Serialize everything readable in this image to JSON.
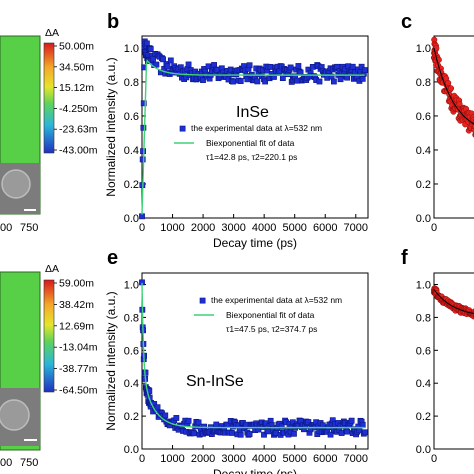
{
  "panel_labels": {
    "b": "b",
    "c": "c",
    "e": "e",
    "f": "f"
  },
  "left_panels": {
    "top": {
      "colorbar_title": "ΔA",
      "colorbar_ticks": [
        "50.00m",
        "34.50m",
        "15.12m",
        "-4.250m",
        "-23.63m",
        "-43.00m"
      ],
      "x_ticks": [
        "00",
        "750"
      ]
    },
    "bottom": {
      "colorbar_title": "ΔA",
      "colorbar_ticks": [
        "59.00m",
        "38.42m",
        "12.69m",
        "-13.04m",
        "-38.77m",
        "-64.50m"
      ],
      "x_ticks": [
        "00",
        "750"
      ]
    }
  },
  "chart_data": [
    {
      "id": "b",
      "type": "scatter",
      "title": "InSe",
      "xlabel": "Decay time (ps)",
      "ylabel": "Normalized intensity (a.u.)",
      "xlim": [
        0,
        7400
      ],
      "ylim": [
        0,
        1.07
      ],
      "x_ticks": [
        "0",
        "1000",
        "2000",
        "3000",
        "4000",
        "5000",
        "6000",
        "7000"
      ],
      "y_ticks": [
        "0.0",
        "0.2",
        "0.4",
        "0.6",
        "0.8",
        "1.0"
      ],
      "series": [
        {
          "name": "the experimental data at λ=532 nm",
          "color": "#1f2fd6",
          "marker": "square",
          "model": {
            "type": "rise_then_plateau",
            "start": 0.02,
            "peak": 1.0,
            "peak_time": 80,
            "plateau": 0.85,
            "noise": 0.05
          },
          "points": 220
        },
        {
          "name": "Biexponential fit of data",
          "color": "#3fd27a",
          "fit": {
            "start": 0.02,
            "peak": 0.93,
            "peak_time": 150,
            "plateau": 0.84
          }
        }
      ],
      "legend_params": "τ1=42.8 ps,  τ2=220.1 ps",
      "legend_position": "middle-center"
    },
    {
      "id": "e",
      "type": "scatter",
      "title": "Sn-InSe",
      "xlabel": "Decay time (ps)",
      "ylabel": "Normalized intensity (a.u.)",
      "xlim": [
        0,
        7400
      ],
      "ylim": [
        0,
        1.07
      ],
      "x_ticks": [
        "0",
        "1000",
        "2000",
        "3000",
        "4000",
        "5000",
        "6000",
        "7000"
      ],
      "y_ticks": [
        "0.0",
        "0.2",
        "0.4",
        "0.6",
        "0.8",
        "1.0"
      ],
      "series": [
        {
          "name": "the experimental data at λ=532 nm",
          "color": "#1f2fd6",
          "marker": "square",
          "model": {
            "type": "biexp_decay",
            "a1": 0.55,
            "t1": 47.5,
            "a2": 0.33,
            "t2": 374.7,
            "offset": 0.13,
            "noise": 0.045
          },
          "points": 220
        },
        {
          "name": "Biexponential fit of data",
          "color": "#3fd27a",
          "fit": {
            "a1": 0.55,
            "t1": 47.5,
            "a2": 0.33,
            "t2": 374.7,
            "offset": 0.13
          }
        }
      ],
      "legend_params": "τ1=47.5 ps,  τ2=374.7 ps",
      "legend_position": "top-right"
    },
    {
      "id": "c",
      "type": "scatter",
      "xlim": [
        0,
        7400
      ],
      "ylim": [
        0,
        1.07
      ],
      "x_ticks": [
        "0"
      ],
      "y_ticks": [
        "0.0",
        "0.2",
        "0.4",
        "0.6",
        "0.8",
        "1.0"
      ],
      "series": [
        {
          "color": "#e8231f",
          "marker": "circle",
          "model": {
            "type": "decay_partial",
            "start": 1.0,
            "end": 0.48,
            "noise": 0.06
          },
          "points": 160
        }
      ]
    },
    {
      "id": "f",
      "type": "scatter",
      "xlim": [
        0,
        7400
      ],
      "ylim": [
        0,
        1.07
      ],
      "x_ticks": [
        "0"
      ],
      "y_ticks": [
        "0.0",
        "0.2",
        "0.4",
        "0.6",
        "0.8",
        "1.0"
      ],
      "series": [
        {
          "color": "#e8231f",
          "marker": "circle",
          "model": {
            "type": "decay_partial",
            "start": 0.97,
            "end": 0.8,
            "noise": 0.02
          },
          "points": 160
        }
      ]
    }
  ]
}
